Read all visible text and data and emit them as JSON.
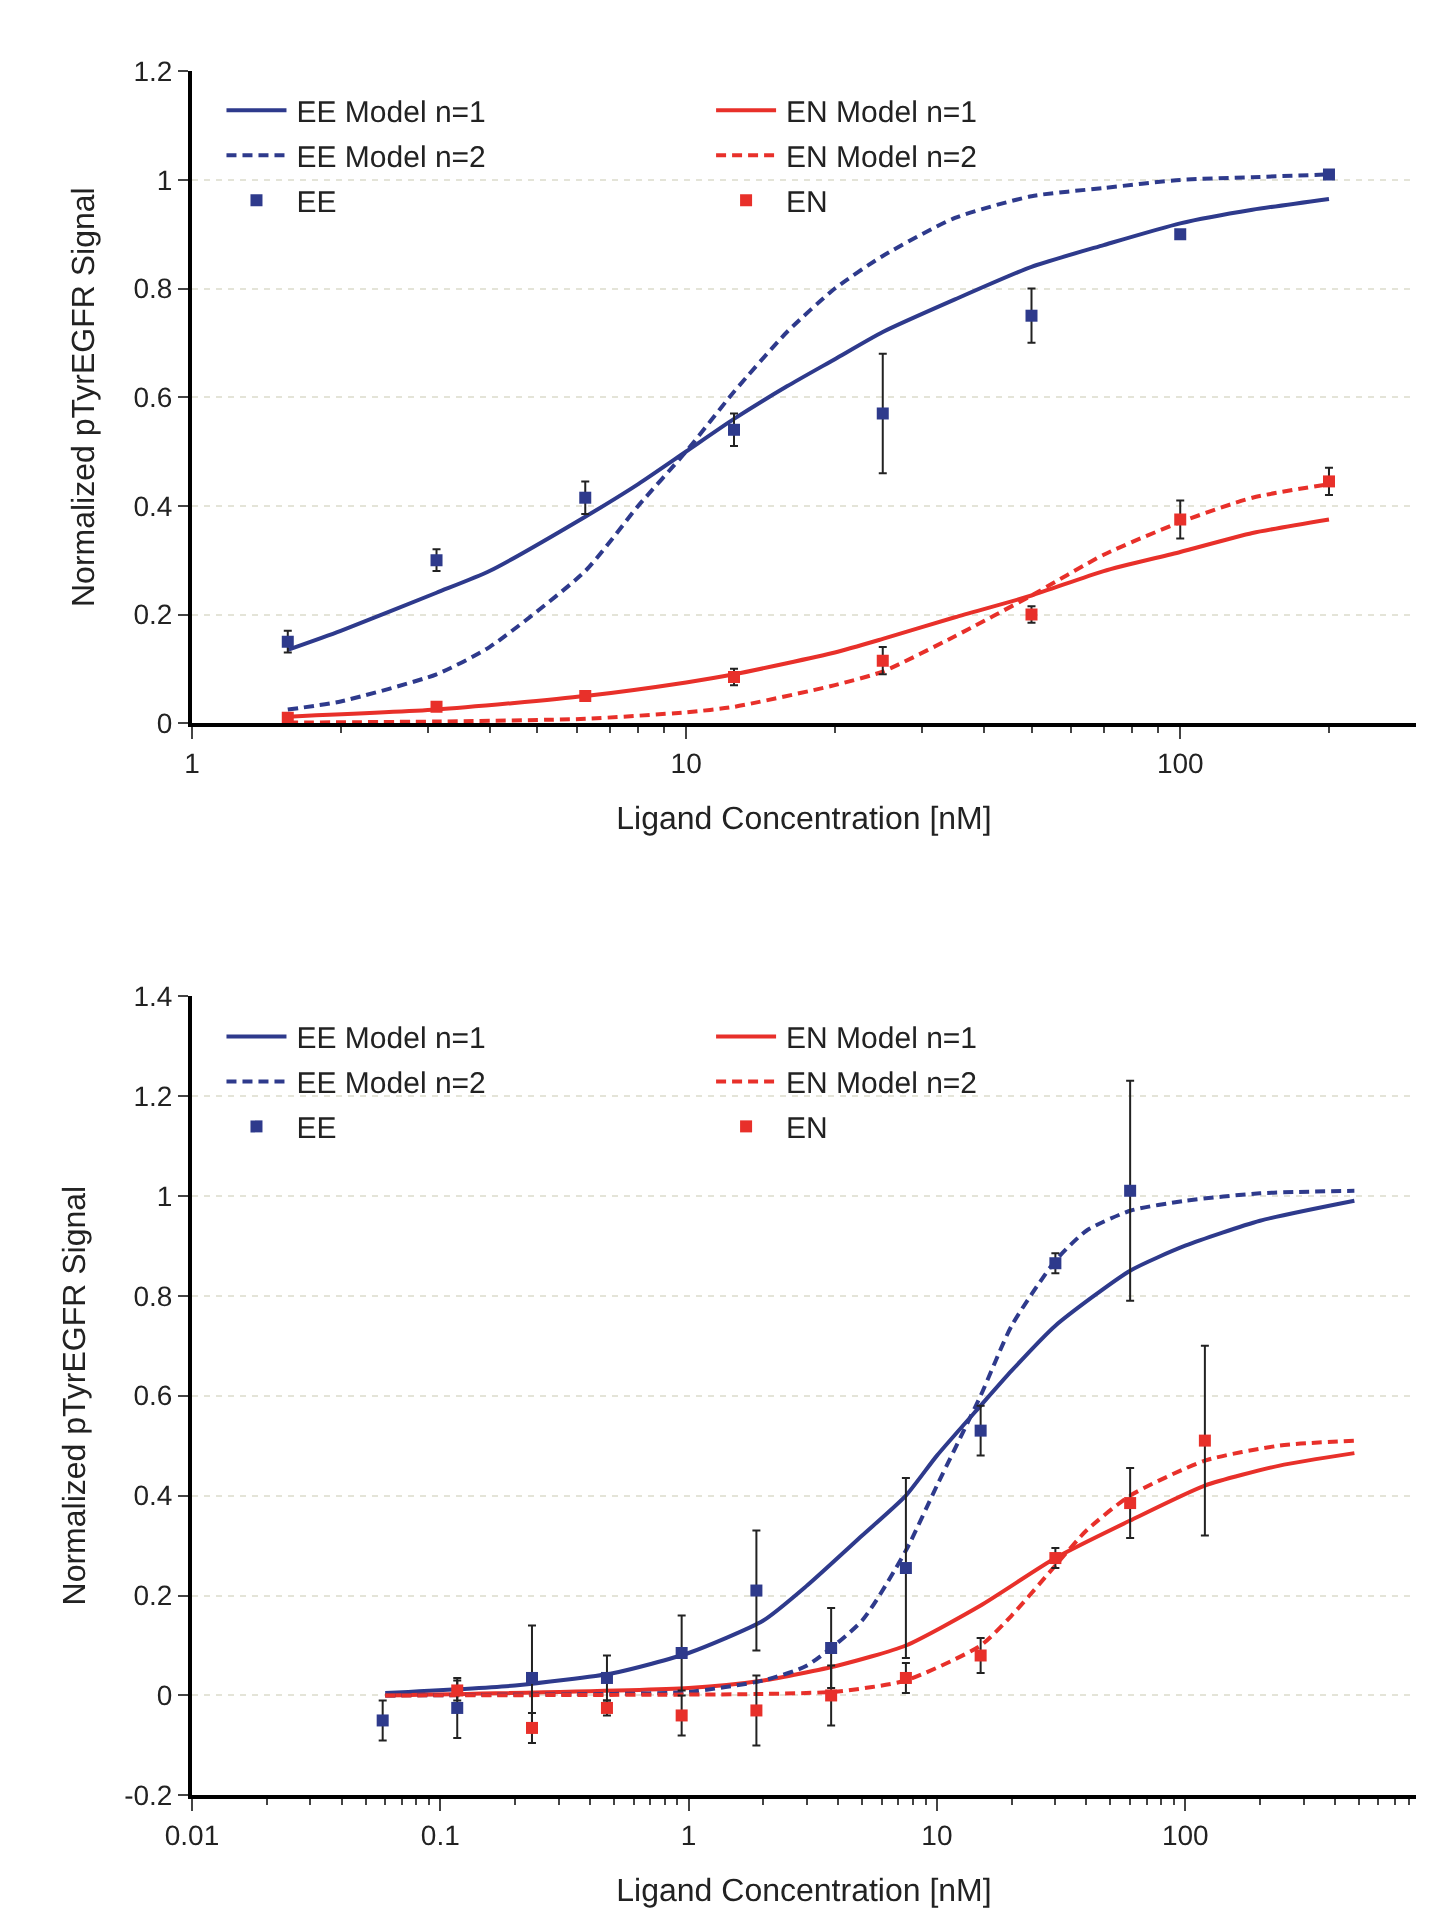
{
  "chart_data": [
    {
      "type": "line",
      "xlabel": "Ligand Concentration [nM]",
      "ylabel": "Normalized pTyrEGFR Signal",
      "log": "x",
      "grid": "y",
      "legend": "top left",
      "xlim": [
        1,
        300
      ],
      "xticks": [
        1,
        10,
        100
      ],
      "ylim": [
        0,
        1.2
      ],
      "yticks": [
        0,
        0.2,
        0.4,
        0.6,
        0.8,
        1,
        1.2
      ],
      "series": [
        {
          "name": "EE",
          "type": "scatter",
          "marker": "square",
          "color": "#2e3a8c",
          "x": [
            1.5625,
            3.125,
            6.25,
            12.5,
            25,
            50,
            100,
            200
          ],
          "values": [
            0.15,
            0.3,
            0.415,
            0.54,
            0.57,
            0.75,
            0.9,
            1.01
          ],
          "errors": [
            0.02,
            0.02,
            0.03,
            0.03,
            0.11,
            0.05,
            null,
            null
          ]
        },
        {
          "name": "EN",
          "type": "scatter",
          "marker": "square",
          "color": "#e8302a",
          "x": [
            1.5625,
            3.125,
            6.25,
            12.5,
            25,
            50,
            100,
            200
          ],
          "values": [
            0.01,
            0.03,
            0.05,
            0.085,
            0.115,
            0.2,
            0.375,
            0.445
          ],
          "errors": [
            null,
            null,
            null,
            0.015,
            0.025,
            0.015,
            0.035,
            0.025
          ]
        },
        {
          "name": "EE Model n=1",
          "type": "line",
          "line_style": "solid",
          "marker": "none",
          "color": "#2e3a8c",
          "x": [
            1.5625,
            2,
            3.125,
            4,
            6.25,
            8,
            10,
            12.5,
            16,
            20,
            25,
            35,
            50,
            70,
            100,
            140,
            200
          ],
          "values": [
            0.135,
            0.17,
            0.24,
            0.28,
            0.38,
            0.44,
            0.5,
            0.56,
            0.62,
            0.67,
            0.72,
            0.78,
            0.84,
            0.88,
            0.92,
            0.945,
            0.965
          ]
        },
        {
          "name": "EN Model n=1",
          "type": "line",
          "line_style": "solid",
          "marker": "none",
          "color": "#e8302a",
          "x": [
            1.5625,
            3.125,
            6.25,
            10,
            12.5,
            20,
            25,
            35,
            50,
            70,
            100,
            140,
            200
          ],
          "values": [
            0.012,
            0.025,
            0.05,
            0.075,
            0.09,
            0.13,
            0.155,
            0.195,
            0.235,
            0.28,
            0.315,
            0.35,
            0.375
          ]
        },
        {
          "name": "EE Model n=2",
          "type": "line",
          "line_style": "dashed",
          "marker": "none",
          "color": "#2e3a8c",
          "x": [
            1.5625,
            2,
            3.125,
            4,
            6.25,
            8,
            10,
            12.5,
            16,
            20,
            25,
            35,
            50,
            70,
            100,
            140,
            200
          ],
          "values": [
            0.025,
            0.04,
            0.09,
            0.14,
            0.28,
            0.4,
            0.5,
            0.61,
            0.72,
            0.8,
            0.86,
            0.93,
            0.97,
            0.985,
            1.0,
            1.005,
            1.01
          ]
        },
        {
          "name": "EN Model n=2",
          "type": "line",
          "line_style": "dashed",
          "marker": "none",
          "color": "#e8302a",
          "x": [
            1.5625,
            3.125,
            6.25,
            10,
            12.5,
            20,
            25,
            35,
            50,
            70,
            100,
            140,
            200
          ],
          "values": [
            0.001,
            0.003,
            0.008,
            0.02,
            0.03,
            0.07,
            0.095,
            0.16,
            0.235,
            0.31,
            0.37,
            0.415,
            0.44
          ]
        }
      ]
    },
    {
      "type": "line",
      "xlabel": "Ligand Concentration [nM]",
      "ylabel": "Normalized pTyrEGFR Signal",
      "log": "x",
      "grid": "y",
      "legend": "top left",
      "xlim": [
        0.01,
        850
      ],
      "xticks": [
        0.01,
        0.1,
        1,
        10,
        100
      ],
      "ylim": [
        -0.2,
        1.4
      ],
      "yticks": [
        -0.2,
        0,
        0.2,
        0.4,
        0.6,
        0.8,
        1,
        1.2,
        1.4
      ],
      "series": [
        {
          "name": "EE",
          "type": "scatter",
          "marker": "square",
          "color": "#2e3a8c",
          "x": [
            0.0586,
            0.117,
            0.234,
            0.469,
            0.9375,
            1.875,
            3.75,
            7.5,
            15,
            30,
            60
          ],
          "values": [
            -0.05,
            -0.025,
            0.035,
            0.035,
            0.085,
            0.21,
            0.095,
            0.255,
            0.53,
            0.865,
            1.01
          ],
          "errors": [
            0.04,
            0.06,
            0.105,
            0.045,
            0.075,
            0.12,
            0.08,
            0.18,
            0.05,
            0.02,
            0.22
          ]
        },
        {
          "name": "EN",
          "type": "scatter",
          "marker": "square",
          "color": "#e8302a",
          "x": [
            0.117,
            0.234,
            0.469,
            0.9375,
            1.875,
            3.75,
            7.5,
            15,
            30,
            60,
            120
          ],
          "values": [
            0.01,
            -0.065,
            -0.025,
            -0.04,
            -0.03,
            0.0,
            0.035,
            0.08,
            0.275,
            0.385,
            0.51
          ],
          "errors": [
            0.02,
            0.03,
            0.015,
            0.04,
            0.07,
            0.06,
            0.03,
            0.035,
            0.02,
            0.07,
            0.19
          ]
        },
        {
          "name": "EE Model n=1",
          "type": "line",
          "line_style": "solid",
          "marker": "none",
          "color": "#2e3a8c",
          "x": [
            0.06,
            0.2,
            0.5,
            1,
            2,
            3,
            5,
            7.5,
            10,
            15,
            20,
            30,
            60,
            100,
            200,
            480
          ],
          "values": [
            0.005,
            0.02,
            0.045,
            0.085,
            0.15,
            0.22,
            0.32,
            0.4,
            0.48,
            0.58,
            0.65,
            0.74,
            0.85,
            0.9,
            0.95,
            0.99
          ]
        },
        {
          "name": "EN Model n=1",
          "type": "line",
          "line_style": "solid",
          "marker": "none",
          "color": "#e8302a",
          "x": [
            0.06,
            1,
            2,
            4,
            7.5,
            15,
            30,
            60,
            120,
            240,
            480
          ],
          "values": [
            0.0,
            0.015,
            0.03,
            0.06,
            0.1,
            0.18,
            0.275,
            0.35,
            0.42,
            0.46,
            0.485
          ]
        },
        {
          "name": "EE Model n=2",
          "type": "line",
          "line_style": "dashed",
          "marker": "none",
          "color": "#2e3a8c",
          "x": [
            0.06,
            0.5,
            1,
            2,
            3,
            5,
            7.5,
            10,
            15,
            20,
            30,
            40,
            60,
            100,
            200,
            480
          ],
          "values": [
            0.0,
            0.003,
            0.007,
            0.03,
            0.06,
            0.15,
            0.29,
            0.42,
            0.6,
            0.74,
            0.87,
            0.93,
            0.97,
            0.99,
            1.005,
            1.01
          ]
        },
        {
          "name": "EN Model n=2",
          "type": "line",
          "line_style": "dashed",
          "marker": "none",
          "color": "#e8302a",
          "x": [
            0.06,
            2,
            4,
            7.5,
            15,
            20,
            30,
            40,
            60,
            120,
            240,
            480
          ],
          "values": [
            0.0,
            0.003,
            0.008,
            0.03,
            0.1,
            0.16,
            0.26,
            0.33,
            0.4,
            0.47,
            0.5,
            0.51
          ]
        }
      ]
    }
  ]
}
